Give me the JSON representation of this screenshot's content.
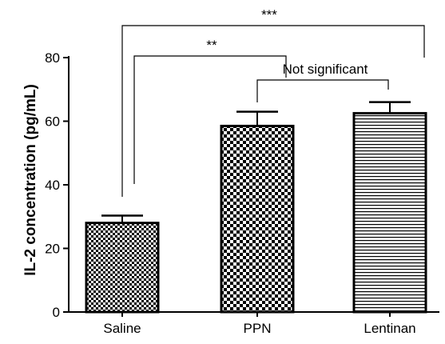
{
  "chart_data": {
    "type": "bar",
    "title": "",
    "xlabel": "",
    "ylabel": "IL-2 concentration (pg/mL)",
    "ylim": [
      0,
      80
    ],
    "yticks": [
      0,
      20,
      40,
      60,
      80
    ],
    "grid": false,
    "categories": [
      "Saline",
      "PPN",
      "Lentinan"
    ],
    "values": [
      28,
      58.5,
      62.5
    ],
    "errors": [
      2.3,
      4.5,
      3.5
    ],
    "fills": [
      "checker-small",
      "checker-large",
      "horizontal-lines"
    ],
    "significance": [
      {
        "from": 0,
        "to": 2,
        "label": "***"
      },
      {
        "from": 0,
        "to": 1,
        "label": "**"
      },
      {
        "from": 1,
        "to": 2,
        "label": "Not significant"
      }
    ]
  }
}
